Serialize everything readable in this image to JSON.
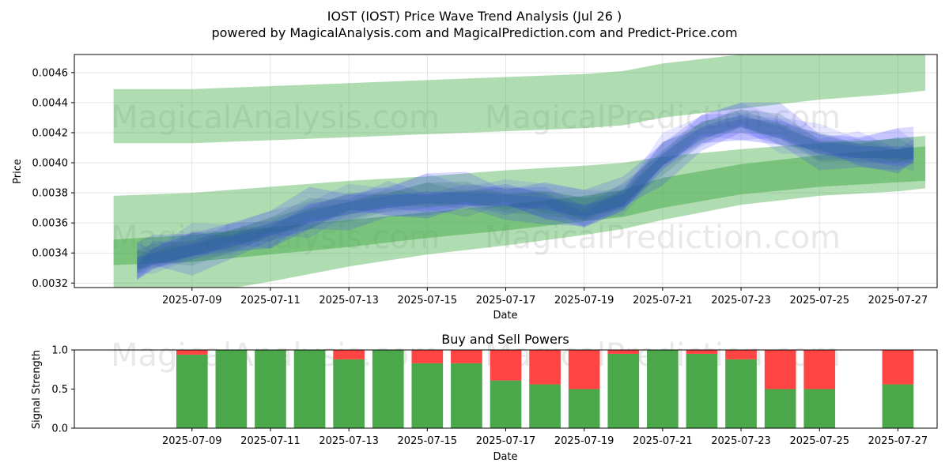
{
  "header": {
    "title": "IOST (IOST) Price Wave Trend Analysis (Jul 26 )",
    "subtitle": "powered by MagicalAnalysis.com and MagicalPrediction.com and Predict-Price.com"
  },
  "watermarks": [
    "MagicalAnalysis.com",
    "MagicalPrediction.com"
  ],
  "colors": {
    "band_green": "#4caf50",
    "wave_blue": "#3333ff",
    "wave_teal": "#1f6f6f",
    "buy": "#4aa84a",
    "sell": "#ff4444",
    "grid": "#dddddd"
  },
  "chart_data": [
    {
      "type": "area",
      "title": "",
      "xlabel": "Date",
      "ylabel": "Price",
      "grid": true,
      "x_ticks": [
        "2025-07-09",
        "2025-07-11",
        "2025-07-13",
        "2025-07-15",
        "2025-07-17",
        "2025-07-19",
        "2025-07-21",
        "2025-07-23",
        "2025-07-25",
        "2025-07-27"
      ],
      "y_ticks": [
        "0.0032",
        "0.0034",
        "0.0036",
        "0.0038",
        "0.0040",
        "0.0042",
        "0.0044",
        "0.0046"
      ],
      "xlim": [
        "2025-07-06",
        "2025-07-28"
      ],
      "ylim": [
        0.00317,
        0.00472
      ],
      "bands": [
        {
          "x": [
            "2025-07-07",
            "2025-07-09",
            "2025-07-11",
            "2025-07-13",
            "2025-07-15",
            "2025-07-17",
            "2025-07-19",
            "2025-07-20",
            "2025-07-21",
            "2025-07-23",
            "2025-07-25",
            "2025-07-27",
            "2025-07-27.7"
          ],
          "upper": [
            0.00449,
            0.00449,
            0.00451,
            0.00453,
            0.00455,
            0.00457,
            0.00459,
            0.00461,
            0.00466,
            0.00472,
            0.00474,
            0.00474,
            0.00474
          ],
          "lower": [
            0.00413,
            0.00413,
            0.00415,
            0.00417,
            0.00419,
            0.00421,
            0.00423,
            0.00425,
            0.0043,
            0.00436,
            0.00442,
            0.00446,
            0.00448
          ]
        },
        {
          "x": [
            "2025-07-07",
            "2025-07-09",
            "2025-07-11",
            "2025-07-13",
            "2025-07-15",
            "2025-07-17",
            "2025-07-19",
            "2025-07-20",
            "2025-07-21",
            "2025-07-23",
            "2025-07-25",
            "2025-07-27",
            "2025-07-27.7"
          ],
          "upper": [
            0.00378,
            0.0038,
            0.00384,
            0.00388,
            0.00391,
            0.00395,
            0.00398,
            0.004,
            0.00404,
            0.00409,
            0.00413,
            0.00416,
            0.00418
          ],
          "lower": [
            0.0031,
            0.00312,
            0.00321,
            0.00331,
            0.00339,
            0.00345,
            0.00352,
            0.00356,
            0.00362,
            0.00372,
            0.00378,
            0.00381,
            0.00383
          ]
        },
        {
          "x": [
            "2025-07-07",
            "2025-07-09",
            "2025-07-11",
            "2025-07-13",
            "2025-07-15",
            "2025-07-17",
            "2025-07-19",
            "2025-07-20",
            "2025-07-21",
            "2025-07-23",
            "2025-07-25",
            "2025-07-27",
            "2025-07-27.7"
          ],
          "upper": [
            0.00349,
            0.00352,
            0.00357,
            0.00362,
            0.00367,
            0.00372,
            0.00378,
            0.00382,
            0.0039,
            0.00399,
            0.00405,
            0.00409,
            0.00411
          ],
          "lower": [
            0.00332,
            0.00334,
            0.00339,
            0.00344,
            0.0035,
            0.00355,
            0.00361,
            0.00364,
            0.0037,
            0.00379,
            0.00384,
            0.00387,
            0.00388
          ]
        }
      ],
      "wave_center": {
        "x": [
          "2025-07-07.6",
          "2025-07-08",
          "2025-07-09",
          "2025-07-10",
          "2025-07-11",
          "2025-07-12",
          "2025-07-13",
          "2025-07-14",
          "2025-07-15",
          "2025-07-16",
          "2025-07-17",
          "2025-07-18",
          "2025-07-19",
          "2025-07-20",
          "2025-07-21",
          "2025-07-22",
          "2025-07-23",
          "2025-07-24",
          "2025-07-25",
          "2025-07-26",
          "2025-07-27",
          "2025-07-27.4"
        ],
        "y": [
          0.00333,
          0.00336,
          0.00342,
          0.00348,
          0.00356,
          0.00364,
          0.0037,
          0.00374,
          0.00377,
          0.00376,
          0.00375,
          0.00373,
          0.00368,
          0.00375,
          0.00402,
          0.0042,
          0.00428,
          0.0042,
          0.0041,
          0.00407,
          0.00407,
          0.00406
        ]
      }
    },
    {
      "type": "bar",
      "title": "Buy and Sell Powers",
      "xlabel": "Date",
      "ylabel": "Signal Strength",
      "ylim": [
        0,
        1.0
      ],
      "y_ticks": [
        "0.0",
        "0.5",
        "1.0"
      ],
      "x_ticks": [
        "2025-07-09",
        "2025-07-11",
        "2025-07-13",
        "2025-07-15",
        "2025-07-17",
        "2025-07-19",
        "2025-07-21",
        "2025-07-23",
        "2025-07-25",
        "2025-07-27"
      ],
      "categories": [
        "2025-07-09",
        "2025-07-10",
        "2025-07-11",
        "2025-07-12",
        "2025-07-13",
        "2025-07-14",
        "2025-07-15",
        "2025-07-16",
        "2025-07-17",
        "2025-07-18",
        "2025-07-19",
        "2025-07-20",
        "2025-07-21",
        "2025-07-22",
        "2025-07-23",
        "2025-07-24",
        "2025-07-25",
        "2025-07-27"
      ],
      "series": [
        {
          "name": "Buy",
          "values": [
            0.94,
            1.0,
            1.0,
            1.0,
            0.88,
            1.0,
            0.83,
            0.83,
            0.61,
            0.56,
            0.5,
            0.95,
            1.0,
            0.95,
            0.88,
            0.5,
            0.5,
            0.56
          ]
        },
        {
          "name": "Sell",
          "values": [
            0.06,
            0.0,
            0.0,
            0.0,
            0.12,
            0.0,
            0.17,
            0.17,
            0.39,
            0.44,
            0.5,
            0.05,
            0.0,
            0.05,
            0.12,
            0.5,
            0.5,
            0.44
          ]
        }
      ]
    }
  ]
}
